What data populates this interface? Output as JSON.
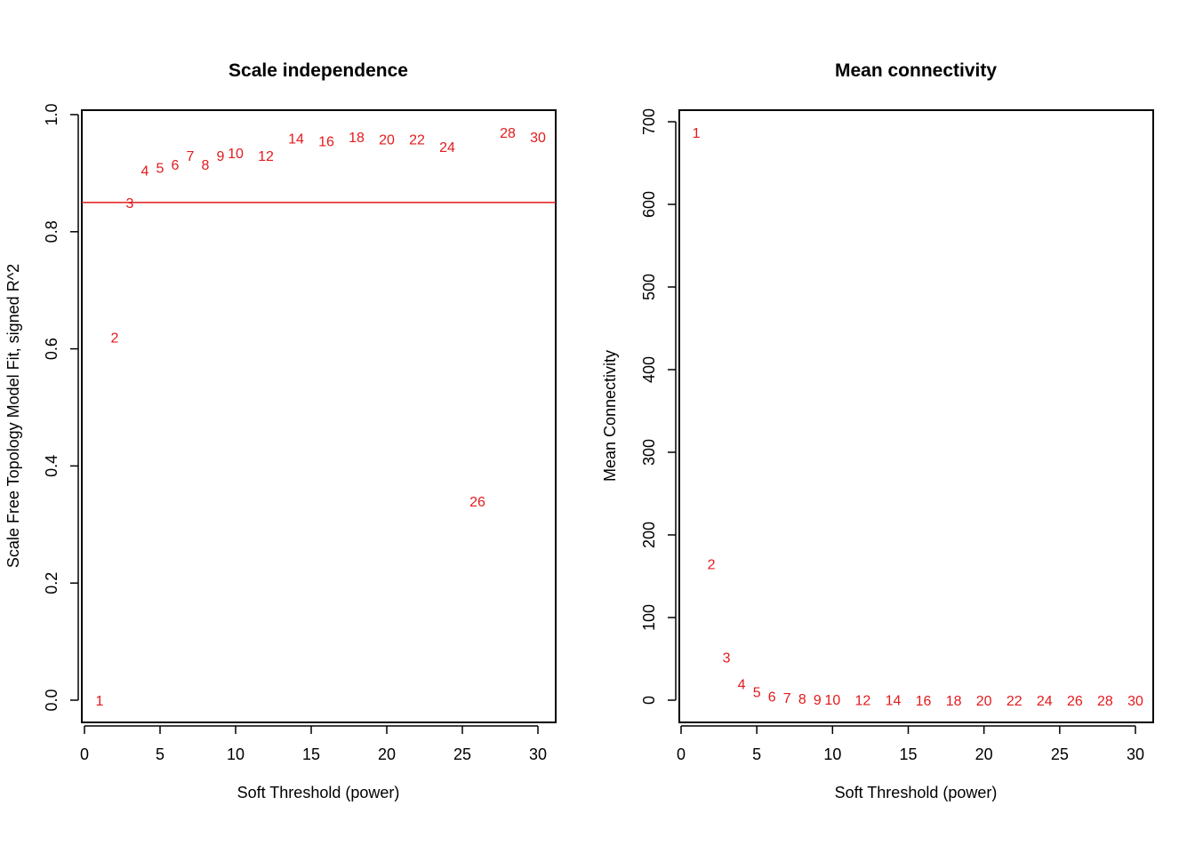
{
  "colors": {
    "point": "#e31a1c",
    "line": "#e31a1c",
    "axis": "#000000"
  },
  "chart_data": [
    {
      "type": "scatter",
      "title": "Scale independence",
      "xlabel": "Soft Threshold (power)",
      "ylabel": "Scale Free Topology Model Fit, signed R^2",
      "xlim": [
        0,
        31
      ],
      "ylim": [
        0,
        1.0
      ],
      "xticks": [
        0,
        5,
        10,
        15,
        20,
        25,
        30
      ],
      "yticks": [
        0.0,
        0.2,
        0.4,
        0.6,
        0.8,
        1.0
      ],
      "xtick_labels": [
        "0",
        "5",
        "10",
        "15",
        "20",
        "25",
        "30"
      ],
      "ytick_labels": [
        "0.0",
        "0.2",
        "0.4",
        "0.6",
        "0.8",
        "1.0"
      ],
      "hline": 0.85,
      "points": [
        {
          "x": 1,
          "y": 0.0,
          "label": "1"
        },
        {
          "x": 2,
          "y": 0.62,
          "label": "2"
        },
        {
          "x": 3,
          "y": 0.85,
          "label": "3"
        },
        {
          "x": 4,
          "y": 0.905,
          "label": "4"
        },
        {
          "x": 5,
          "y": 0.91,
          "label": "5"
        },
        {
          "x": 6,
          "y": 0.915,
          "label": "6"
        },
        {
          "x": 7,
          "y": 0.93,
          "label": "7"
        },
        {
          "x": 8,
          "y": 0.915,
          "label": "8"
        },
        {
          "x": 9,
          "y": 0.93,
          "label": "9"
        },
        {
          "x": 10,
          "y": 0.935,
          "label": "10"
        },
        {
          "x": 12,
          "y": 0.93,
          "label": "12"
        },
        {
          "x": 14,
          "y": 0.96,
          "label": "14"
        },
        {
          "x": 16,
          "y": 0.955,
          "label": "16"
        },
        {
          "x": 18,
          "y": 0.962,
          "label": "18"
        },
        {
          "x": 20,
          "y": 0.958,
          "label": "20"
        },
        {
          "x": 22,
          "y": 0.958,
          "label": "22"
        },
        {
          "x": 24,
          "y": 0.945,
          "label": "24"
        },
        {
          "x": 26,
          "y": 0.34,
          "label": "26"
        },
        {
          "x": 28,
          "y": 0.97,
          "label": "28"
        },
        {
          "x": 30,
          "y": 0.962,
          "label": "30"
        }
      ]
    },
    {
      "type": "scatter",
      "title": "Mean connectivity",
      "xlabel": "Soft Threshold (power)",
      "ylabel": "Mean Connectivity",
      "xlim": [
        0,
        31
      ],
      "ylim": [
        0,
        700
      ],
      "xticks": [
        0,
        5,
        10,
        15,
        20,
        25,
        30
      ],
      "yticks": [
        0,
        100,
        200,
        300,
        400,
        500,
        600,
        700
      ],
      "xtick_labels": [
        "0",
        "5",
        "10",
        "15",
        "20",
        "25",
        "30"
      ],
      "ytick_labels": [
        "0",
        "100",
        "200",
        "300",
        "400",
        "500",
        "600",
        "700"
      ],
      "points": [
        {
          "x": 1,
          "y": 687,
          "label": "1"
        },
        {
          "x": 2,
          "y": 165,
          "label": "2"
        },
        {
          "x": 3,
          "y": 52,
          "label": "3"
        },
        {
          "x": 4,
          "y": 20,
          "label": "4"
        },
        {
          "x": 5,
          "y": 10,
          "label": "5"
        },
        {
          "x": 6,
          "y": 5,
          "label": "6"
        },
        {
          "x": 7,
          "y": 3,
          "label": "7"
        },
        {
          "x": 8,
          "y": 2,
          "label": "8"
        },
        {
          "x": 9,
          "y": 1,
          "label": "9"
        },
        {
          "x": 10,
          "y": 1,
          "label": "10"
        },
        {
          "x": 12,
          "y": 0.5,
          "label": "12"
        },
        {
          "x": 14,
          "y": 0.3,
          "label": "14"
        },
        {
          "x": 16,
          "y": 0.2,
          "label": "16"
        },
        {
          "x": 18,
          "y": 0.1,
          "label": "18"
        },
        {
          "x": 20,
          "y": 0.1,
          "label": "20"
        },
        {
          "x": 22,
          "y": 0.1,
          "label": "22"
        },
        {
          "x": 24,
          "y": 0.1,
          "label": "24"
        },
        {
          "x": 26,
          "y": 0.1,
          "label": "26"
        },
        {
          "x": 28,
          "y": 0.1,
          "label": "28"
        },
        {
          "x": 30,
          "y": 0.1,
          "label": "30"
        }
      ]
    }
  ]
}
